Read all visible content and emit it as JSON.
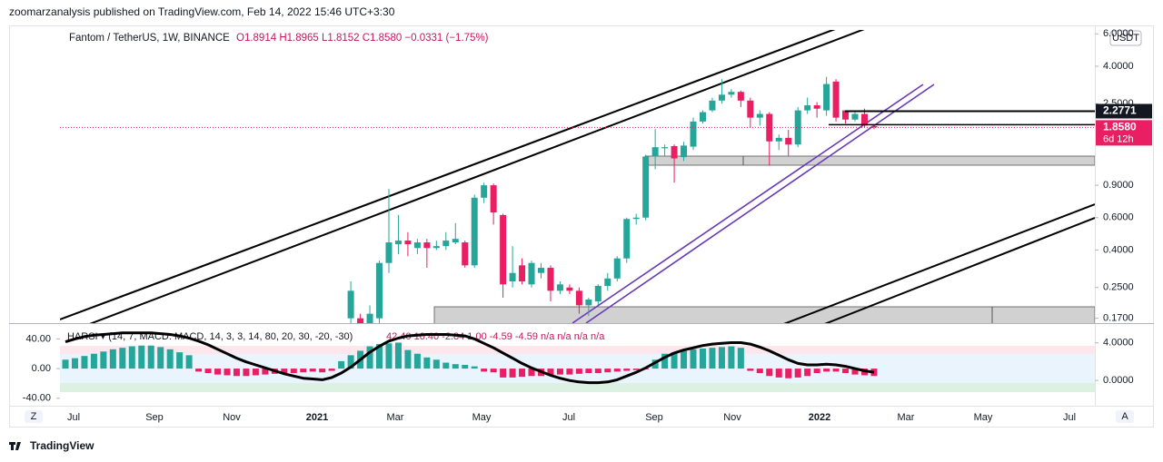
{
  "header": {
    "published": "zoomarzanalysis published on TradingView.com, Feb 14, 2022 15:46 UTC+3:30",
    "brand": "TradingView",
    "zoom": "Z",
    "auto": "A"
  },
  "chart_data": [
    {
      "type": "candlestick",
      "title": "Fantom / TetherUS, 1W, BINANCE",
      "ohlc_legend": "O1.8914 H1.8965 L1.8152 C1.8580 −0.0331 (−1.75%)",
      "currency": "USDT",
      "log_scale": true,
      "ylim": [
        0.16,
        6.3
      ],
      "yticks": [
        {
          "value": 6,
          "label": "6.0000"
        },
        {
          "value": 4,
          "label": "4.0000"
        },
        {
          "value": 2.5,
          "label": "2.5000"
        },
        {
          "value": 0.9,
          "label": "0.9000"
        },
        {
          "value": 0.6,
          "label": "0.6000"
        },
        {
          "value": 0.4,
          "label": "0.4000"
        },
        {
          "value": 0.25,
          "label": "0.2500"
        },
        {
          "value": 0.17,
          "label": "0.1700"
        }
      ],
      "xtick_labels": [
        "Jul",
        "Sep",
        "Nov",
        "2021",
        "Mar",
        "May",
        "Jul",
        "Sep",
        "Nov",
        "2022",
        "Mar",
        "May",
        "Jul"
      ],
      "up_color": "#26a69a",
      "down_color": "#e91e63",
      "open": [
        null,
        null,
        null,
        null,
        null,
        null,
        null,
        null,
        null,
        null,
        null,
        null,
        null,
        null,
        null,
        null,
        null,
        null,
        null,
        null,
        null,
        null,
        null,
        null,
        null,
        null,
        null,
        null,
        null,
        null,
        0.17,
        0.17,
        0.16,
        0.17,
        0.34,
        0.43,
        0.45,
        0.41,
        0.44,
        0.41,
        0.42,
        0.44,
        0.44,
        0.33,
        0.77,
        0.9,
        0.62,
        0.27,
        0.33,
        0.26,
        0.3,
        0.32,
        0.24,
        0.25,
        0.24,
        0.2,
        0.21,
        0.255,
        0.28,
        0.36,
        0.59,
        0.6,
        1.29,
        1.43,
        1.47,
        1.28,
        1.46,
        2.0,
        2.3,
        2.6,
        2.8,
        2.9,
        2.6,
        2.1,
        2.2,
        1.56,
        1.63,
        1.5,
        2.3,
        2.45,
        2.3,
        3.3,
        2.3,
        2.05,
        2.2,
        1.8914
      ],
      "high": [
        null,
        null,
        null,
        null,
        null,
        null,
        null,
        null,
        null,
        null,
        null,
        null,
        null,
        null,
        null,
        null,
        null,
        null,
        null,
        null,
        null,
        null,
        null,
        null,
        null,
        null,
        null,
        null,
        null,
        null,
        0.27,
        0.18,
        0.2,
        0.35,
        0.86,
        0.62,
        0.5,
        0.46,
        0.46,
        0.45,
        0.5,
        0.56,
        0.45,
        0.8,
        0.93,
        0.92,
        0.63,
        0.42,
        0.36,
        0.35,
        0.34,
        0.33,
        0.27,
        0.26,
        0.25,
        0.22,
        0.26,
        0.3,
        0.37,
        0.6,
        0.63,
        1.32,
        1.82,
        1.5,
        1.5,
        1.55,
        2.1,
        2.3,
        2.7,
        3.4,
        3.0,
        2.95,
        2.7,
        2.3,
        2.25,
        1.7,
        1.8,
        2.4,
        2.7,
        2.55,
        3.5,
        3.4,
        2.3,
        2.27,
        2.35,
        1.8965
      ],
      "low": [
        null,
        null,
        null,
        null,
        null,
        null,
        null,
        null,
        null,
        null,
        null,
        null,
        null,
        null,
        null,
        null,
        null,
        null,
        null,
        null,
        null,
        null,
        null,
        null,
        null,
        null,
        null,
        null,
        null,
        null,
        0.16,
        0.15,
        0.15,
        0.16,
        0.3,
        0.38,
        0.37,
        0.38,
        0.32,
        0.4,
        0.4,
        0.43,
        0.32,
        0.32,
        0.72,
        0.55,
        0.22,
        0.25,
        0.26,
        0.25,
        0.28,
        0.21,
        0.23,
        0.23,
        0.18,
        0.175,
        0.2,
        0.24,
        0.27,
        0.34,
        0.55,
        0.58,
        1.1,
        1.3,
        0.93,
        1.22,
        1.4,
        1.95,
        2.25,
        2.5,
        2.7,
        2.4,
        1.85,
        1.9,
        1.15,
        1.4,
        1.3,
        1.45,
        2.2,
        2.1,
        2.15,
        2.0,
        1.95,
        2.0,
        1.85,
        1.8152
      ],
      "close": [
        null,
        null,
        null,
        null,
        null,
        null,
        null,
        null,
        null,
        null,
        null,
        null,
        null,
        null,
        null,
        null,
        null,
        null,
        null,
        null,
        null,
        null,
        null,
        null,
        null,
        null,
        null,
        null,
        null,
        null,
        0.24,
        0.16,
        0.18,
        0.34,
        0.44,
        0.45,
        0.43,
        0.44,
        0.41,
        0.42,
        0.45,
        0.46,
        0.33,
        0.77,
        0.9,
        0.64,
        0.26,
        0.3,
        0.27,
        0.34,
        0.32,
        0.24,
        0.26,
        0.24,
        0.2,
        0.215,
        0.255,
        0.28,
        0.36,
        0.59,
        0.6,
        1.29,
        1.45,
        1.45,
        1.26,
        1.48,
        2.0,
        2.25,
        2.6,
        2.8,
        2.9,
        2.6,
        2.1,
        2.2,
        1.56,
        1.63,
        1.5,
        2.3,
        2.45,
        2.35,
        3.2,
        2.1,
        2.05,
        2.2,
        1.9,
        1.858
      ],
      "price_labels": [
        {
          "value": 2.2771,
          "label": "2.2771"
        },
        {
          "value": 1.858,
          "label": "1.8580",
          "countdown": "6d 12h"
        }
      ]
    },
    {
      "type": "oscillator",
      "title": "HARSI ▾ (14, 7, MACD: MACD, 14, 3, 3, 14, 80, 20, 30, -20, -30)",
      "legend_values": "42.40  10.40  -2.84  1.00  -4.59  -4.59  n/a  n/a  n/a  n/a",
      "ylim": [
        -50,
        60
      ],
      "yticks": [
        {
          "value": 40,
          "label": "40.00"
        },
        {
          "value": 0,
          "label": "0.00"
        },
        {
          "value": -40,
          "label": "-40.00"
        }
      ],
      "y2lim": [
        -2.7,
        6.0
      ],
      "y2ticks": [
        {
          "value": 4,
          "label": "4.0000"
        },
        {
          "value": 0,
          "label": "0.0000"
        }
      ],
      "up_color": "#26a69a",
      "down_color": "#e91e63",
      "series": [
        {
          "type": "bar",
          "values": [
            12,
            14,
            17,
            20,
            23,
            26,
            28,
            30,
            31,
            31,
            29,
            26,
            22,
            18,
            -4,
            -6,
            -8,
            -9,
            -10,
            -10,
            -9,
            -8,
            -7,
            -6,
            -6,
            -5,
            -4,
            -5,
            -3,
            10,
            18,
            24,
            30,
            33,
            34,
            35,
            25,
            20,
            15,
            12,
            8,
            6,
            5,
            3,
            -4,
            -5,
            -12,
            -12,
            -11,
            -10,
            -10,
            -9,
            -8,
            -8,
            -7,
            -6,
            -6,
            -5,
            -4,
            -3,
            -2,
            -1,
            12,
            20,
            22,
            24,
            26,
            27,
            28,
            29,
            30,
            28,
            -3,
            -6,
            -10,
            -12,
            -13,
            -12,
            -10,
            -6,
            -4,
            -4,
            -6,
            -8,
            -9,
            -10
          ]
        },
        {
          "type": "line",
          "color": "#000000",
          "values": [
            36,
            40,
            43,
            45,
            46,
            47,
            48,
            48,
            48,
            48,
            47,
            46,
            44,
            41,
            37,
            32,
            26,
            20,
            14,
            9,
            5,
            1,
            -3,
            -7,
            -10,
            -13,
            -14,
            -15,
            -12,
            -6,
            2,
            12,
            22,
            30,
            37,
            41,
            44,
            45,
            46,
            46,
            46,
            45,
            44,
            40,
            34,
            28,
            21,
            14,
            7,
            1,
            -4,
            -9,
            -13,
            -16,
            -18,
            -19,
            -19,
            -18,
            -15,
            -10,
            -5,
            1,
            8,
            15,
            21,
            25,
            28,
            31,
            33,
            34,
            35,
            35,
            33,
            29,
            24,
            18,
            12,
            7,
            5,
            5,
            6,
            5,
            3,
            0,
            -3,
            -5
          ]
        }
      ]
    }
  ]
}
